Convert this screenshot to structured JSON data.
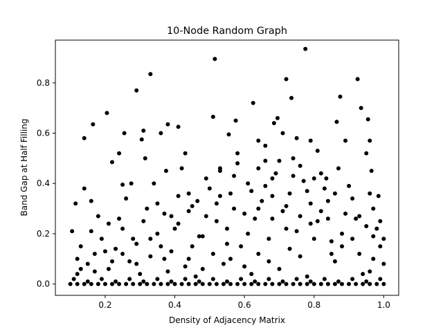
{
  "chart_data": {
    "type": "scatter",
    "title": "10-Node Random Graph",
    "xlabel": "Density of Adjacency Matrix",
    "ylabel": "Band Gap at Half Filling",
    "xlim": [
      0.057,
      1.043
    ],
    "ylim": [
      -0.045,
      0.97
    ],
    "xticks": [
      0.2,
      0.4,
      0.6,
      0.8,
      1.0
    ],
    "xtick_labels": [
      "0.2",
      "0.4",
      "0.6",
      "0.8",
      "1.0"
    ],
    "yticks": [
      0.0,
      0.2,
      0.4,
      0.6,
      0.8
    ],
    "ytick_labels": [
      "0.0",
      "0.2",
      "0.4",
      "0.6",
      "0.8"
    ],
    "grid": false,
    "legend": "none",
    "marker_color": "#000000",
    "series": [
      {
        "points": [
          [
            0.105,
            0.21
          ],
          [
            0.115,
            0.32
          ],
          [
            0.14,
            0.58
          ],
          [
            0.14,
            0.38
          ],
          [
            0.16,
            0.33
          ],
          [
            0.165,
            0.635
          ],
          [
            0.205,
            0.68
          ],
          [
            0.22,
            0.485
          ],
          [
            0.24,
            0.52
          ],
          [
            0.25,
            0.395
          ],
          [
            0.255,
            0.6
          ],
          [
            0.275,
            0.4
          ],
          [
            0.29,
            0.77
          ],
          [
            0.305,
            0.575
          ],
          [
            0.31,
            0.61
          ],
          [
            0.315,
            0.5
          ],
          [
            0.33,
            0.835
          ],
          [
            0.36,
            0.6
          ],
          [
            0.375,
            0.45
          ],
          [
            0.38,
            0.635
          ],
          [
            0.41,
            0.625
          ],
          [
            0.43,
            0.52
          ],
          [
            0.44,
            0.36
          ],
          [
            0.465,
            0.33
          ],
          [
            0.49,
            0.42
          ],
          [
            0.515,
            0.895
          ],
          [
            0.51,
            0.665
          ],
          [
            0.53,
            0.45
          ],
          [
            0.555,
            0.595
          ],
          [
            0.575,
            0.65
          ],
          [
            0.625,
            0.72
          ],
          [
            0.64,
            0.57
          ],
          [
            0.66,
            0.49
          ],
          [
            0.685,
            0.64
          ],
          [
            0.695,
            0.66
          ],
          [
            0.72,
            0.815
          ],
          [
            0.735,
            0.74
          ],
          [
            0.71,
            0.6
          ],
          [
            0.75,
            0.58
          ],
          [
            0.775,
            0.935
          ],
          [
            0.79,
            0.57
          ],
          [
            0.81,
            0.53
          ],
          [
            0.835,
            0.42
          ],
          [
            0.865,
            0.645
          ],
          [
            0.875,
            0.745
          ],
          [
            0.89,
            0.57
          ],
          [
            0.925,
            0.815
          ],
          [
            0.935,
            0.7
          ],
          [
            0.955,
            0.655
          ],
          [
            0.96,
            0.57
          ],
          [
            0.965,
            0.45
          ],
          [
            0.985,
            0.35
          ],
          [
            0.95,
            0.52
          ],
          [
            0.12,
            0.1
          ],
          [
            0.13,
            0.15
          ],
          [
            0.15,
            0.08
          ],
          [
            0.17,
            0.12
          ],
          [
            0.19,
            0.18
          ],
          [
            0.21,
            0.06
          ],
          [
            0.23,
            0.14
          ],
          [
            0.25,
            0.22
          ],
          [
            0.27,
            0.09
          ],
          [
            0.29,
            0.16
          ],
          [
            0.31,
            0.25
          ],
          [
            0.33,
            0.11
          ],
          [
            0.35,
            0.2
          ],
          [
            0.37,
            0.28
          ],
          [
            0.39,
            0.13
          ],
          [
            0.41,
            0.24
          ],
          [
            0.43,
            0.07
          ],
          [
            0.45,
            0.31
          ],
          [
            0.47,
            0.19
          ],
          [
            0.49,
            0.27
          ],
          [
            0.51,
            0.12
          ],
          [
            0.53,
            0.35
          ],
          [
            0.55,
            0.22
          ],
          [
            0.57,
            0.3
          ],
          [
            0.59,
            0.15
          ],
          [
            0.61,
            0.4
          ],
          [
            0.63,
            0.26
          ],
          [
            0.65,
            0.33
          ],
          [
            0.67,
            0.18
          ],
          [
            0.69,
            0.44
          ],
          [
            0.71,
            0.29
          ],
          [
            0.73,
            0.36
          ],
          [
            0.75,
            0.21
          ],
          [
            0.77,
            0.41
          ],
          [
            0.79,
            0.32
          ],
          [
            0.81,
            0.25
          ],
          [
            0.83,
            0.38
          ],
          [
            0.85,
            0.17
          ],
          [
            0.87,
            0.46
          ],
          [
            0.89,
            0.28
          ],
          [
            0.91,
            0.34
          ],
          [
            0.93,
            0.12
          ],
          [
            0.95,
            0.23
          ],
          [
            0.97,
            0.3
          ],
          [
            0.99,
            0.15
          ],
          [
            0.18,
            0.27
          ],
          [
            0.26,
            0.34
          ],
          [
            0.34,
            0.4
          ],
          [
            0.42,
            0.46
          ],
          [
            0.5,
            0.38
          ],
          [
            0.58,
            0.48
          ],
          [
            0.66,
            0.55
          ],
          [
            0.74,
            0.5
          ],
          [
            0.82,
            0.44
          ],
          [
            0.9,
            0.39
          ],
          [
            0.98,
            0.22
          ],
          [
            0.22,
            0.09
          ],
          [
            0.38,
            0.05
          ],
          [
            0.54,
            0.08
          ],
          [
            0.7,
            0.06
          ],
          [
            0.86,
            0.09
          ],
          [
            0.96,
            0.05
          ],
          [
            0.3,
            0.04
          ],
          [
            0.46,
            0.03
          ],
          [
            0.62,
            0.04
          ],
          [
            0.78,
            0.03
          ],
          [
            0.94,
            0.04
          ],
          [
            0.11,
            0.02
          ],
          [
            0.15,
            0.01
          ],
          [
            0.19,
            0.02
          ],
          [
            0.23,
            0.01
          ],
          [
            0.27,
            0.02
          ],
          [
            0.31,
            0.01
          ],
          [
            0.35,
            0.02
          ],
          [
            0.39,
            0.01
          ],
          [
            0.43,
            0.02
          ],
          [
            0.47,
            0.01
          ],
          [
            0.51,
            0.02
          ],
          [
            0.55,
            0.01
          ],
          [
            0.59,
            0.02
          ],
          [
            0.63,
            0.01
          ],
          [
            0.67,
            0.02
          ],
          [
            0.71,
            0.01
          ],
          [
            0.75,
            0.02
          ],
          [
            0.79,
            0.01
          ],
          [
            0.83,
            0.02
          ],
          [
            0.87,
            0.01
          ],
          [
            0.91,
            0.02
          ],
          [
            0.95,
            0.01
          ],
          [
            0.99,
            0.02
          ],
          [
            0.1,
            0.0
          ],
          [
            0.12,
            0.0
          ],
          [
            0.14,
            0.0
          ],
          [
            0.16,
            0.0
          ],
          [
            0.18,
            0.0
          ],
          [
            0.2,
            0.0
          ],
          [
            0.22,
            0.0
          ],
          [
            0.24,
            0.0
          ],
          [
            0.26,
            0.0
          ],
          [
            0.28,
            0.0
          ],
          [
            0.3,
            0.0
          ],
          [
            0.32,
            0.0
          ],
          [
            0.34,
            0.0
          ],
          [
            0.36,
            0.0
          ],
          [
            0.38,
            0.0
          ],
          [
            0.4,
            0.0
          ],
          [
            0.42,
            0.0
          ],
          [
            0.44,
            0.0
          ],
          [
            0.46,
            0.0
          ],
          [
            0.48,
            0.0
          ],
          [
            0.5,
            0.0
          ],
          [
            0.52,
            0.0
          ],
          [
            0.54,
            0.0
          ],
          [
            0.56,
            0.0
          ],
          [
            0.58,
            0.0
          ],
          [
            0.6,
            0.0
          ],
          [
            0.62,
            0.0
          ],
          [
            0.64,
            0.0
          ],
          [
            0.66,
            0.0
          ],
          [
            0.68,
            0.0
          ],
          [
            0.7,
            0.0
          ],
          [
            0.72,
            0.0
          ],
          [
            0.74,
            0.0
          ],
          [
            0.76,
            0.0
          ],
          [
            0.78,
            0.0
          ],
          [
            0.8,
            0.0
          ],
          [
            0.82,
            0.0
          ],
          [
            0.84,
            0.0
          ],
          [
            0.86,
            0.0
          ],
          [
            0.88,
            0.0
          ],
          [
            0.9,
            0.0
          ],
          [
            0.92,
            0.0
          ],
          [
            0.94,
            0.0
          ],
          [
            0.96,
            0.0
          ],
          [
            0.98,
            0.0
          ],
          [
            1.0,
            0.0
          ],
          [
            1.0,
            0.08
          ],
          [
            1.0,
            0.18
          ],
          [
            0.99,
            0.25
          ],
          [
            0.97,
            0.1
          ],
          [
            0.93,
            0.27
          ],
          [
            0.88,
            0.2
          ],
          [
            0.84,
            0.33
          ],
          [
            0.8,
            0.18
          ],
          [
            0.76,
            0.27
          ],
          [
            0.72,
            0.22
          ],
          [
            0.68,
            0.35
          ],
          [
            0.64,
            0.12
          ],
          [
            0.6,
            0.28
          ],
          [
            0.56,
            0.36
          ],
          [
            0.52,
            0.25
          ],
          [
            0.48,
            0.19
          ],
          [
            0.44,
            0.29
          ],
          [
            0.4,
            0.22
          ],
          [
            0.36,
            0.15
          ],
          [
            0.32,
            0.3
          ],
          [
            0.28,
            0.18
          ],
          [
            0.24,
            0.26
          ],
          [
            0.2,
            0.13
          ],
          [
            0.16,
            0.21
          ],
          [
            0.13,
            0.06
          ],
          [
            0.68,
            0.42
          ],
          [
            0.62,
            0.37
          ],
          [
            0.57,
            0.43
          ],
          [
            0.53,
            0.46
          ],
          [
            0.66,
            0.39
          ],
          [
            0.74,
            0.43
          ],
          [
            0.78,
            0.37
          ],
          [
            0.82,
            0.29
          ],
          [
            0.86,
            0.36
          ],
          [
            0.58,
            0.52
          ],
          [
            0.64,
            0.46
          ],
          [
            0.7,
            0.49
          ],
          [
            0.76,
            0.47
          ],
          [
            0.45,
            0.15
          ],
          [
            0.41,
            0.35
          ],
          [
            0.37,
            0.1
          ],
          [
            0.33,
            0.18
          ],
          [
            0.29,
            0.08
          ],
          [
            0.25,
            0.12
          ],
          [
            0.21,
            0.24
          ],
          [
            0.17,
            0.05
          ],
          [
            0.55,
            0.16
          ],
          [
            0.61,
            0.2
          ],
          [
            0.67,
            0.09
          ],
          [
            0.73,
            0.14
          ],
          [
            0.79,
            0.24
          ],
          [
            0.85,
            0.12
          ],
          [
            0.91,
            0.18
          ],
          [
            0.97,
            0.19
          ],
          [
            0.12,
            0.04
          ],
          [
            0.44,
            0.1
          ],
          [
            0.48,
            0.06
          ],
          [
            0.52,
            0.32
          ],
          [
            0.56,
            0.1
          ],
          [
            0.6,
            0.07
          ],
          [
            0.64,
            0.3
          ],
          [
            0.68,
            0.26
          ],
          [
            0.72,
            0.31
          ],
          [
            0.76,
            0.11
          ],
          [
            0.8,
            0.42
          ],
          [
            0.84,
            0.26
          ],
          [
            0.88,
            0.15
          ],
          [
            0.92,
            0.26
          ],
          [
            0.96,
            0.36
          ],
          [
            0.35,
            0.32
          ],
          [
            0.39,
            0.27
          ]
        ]
      }
    ]
  }
}
